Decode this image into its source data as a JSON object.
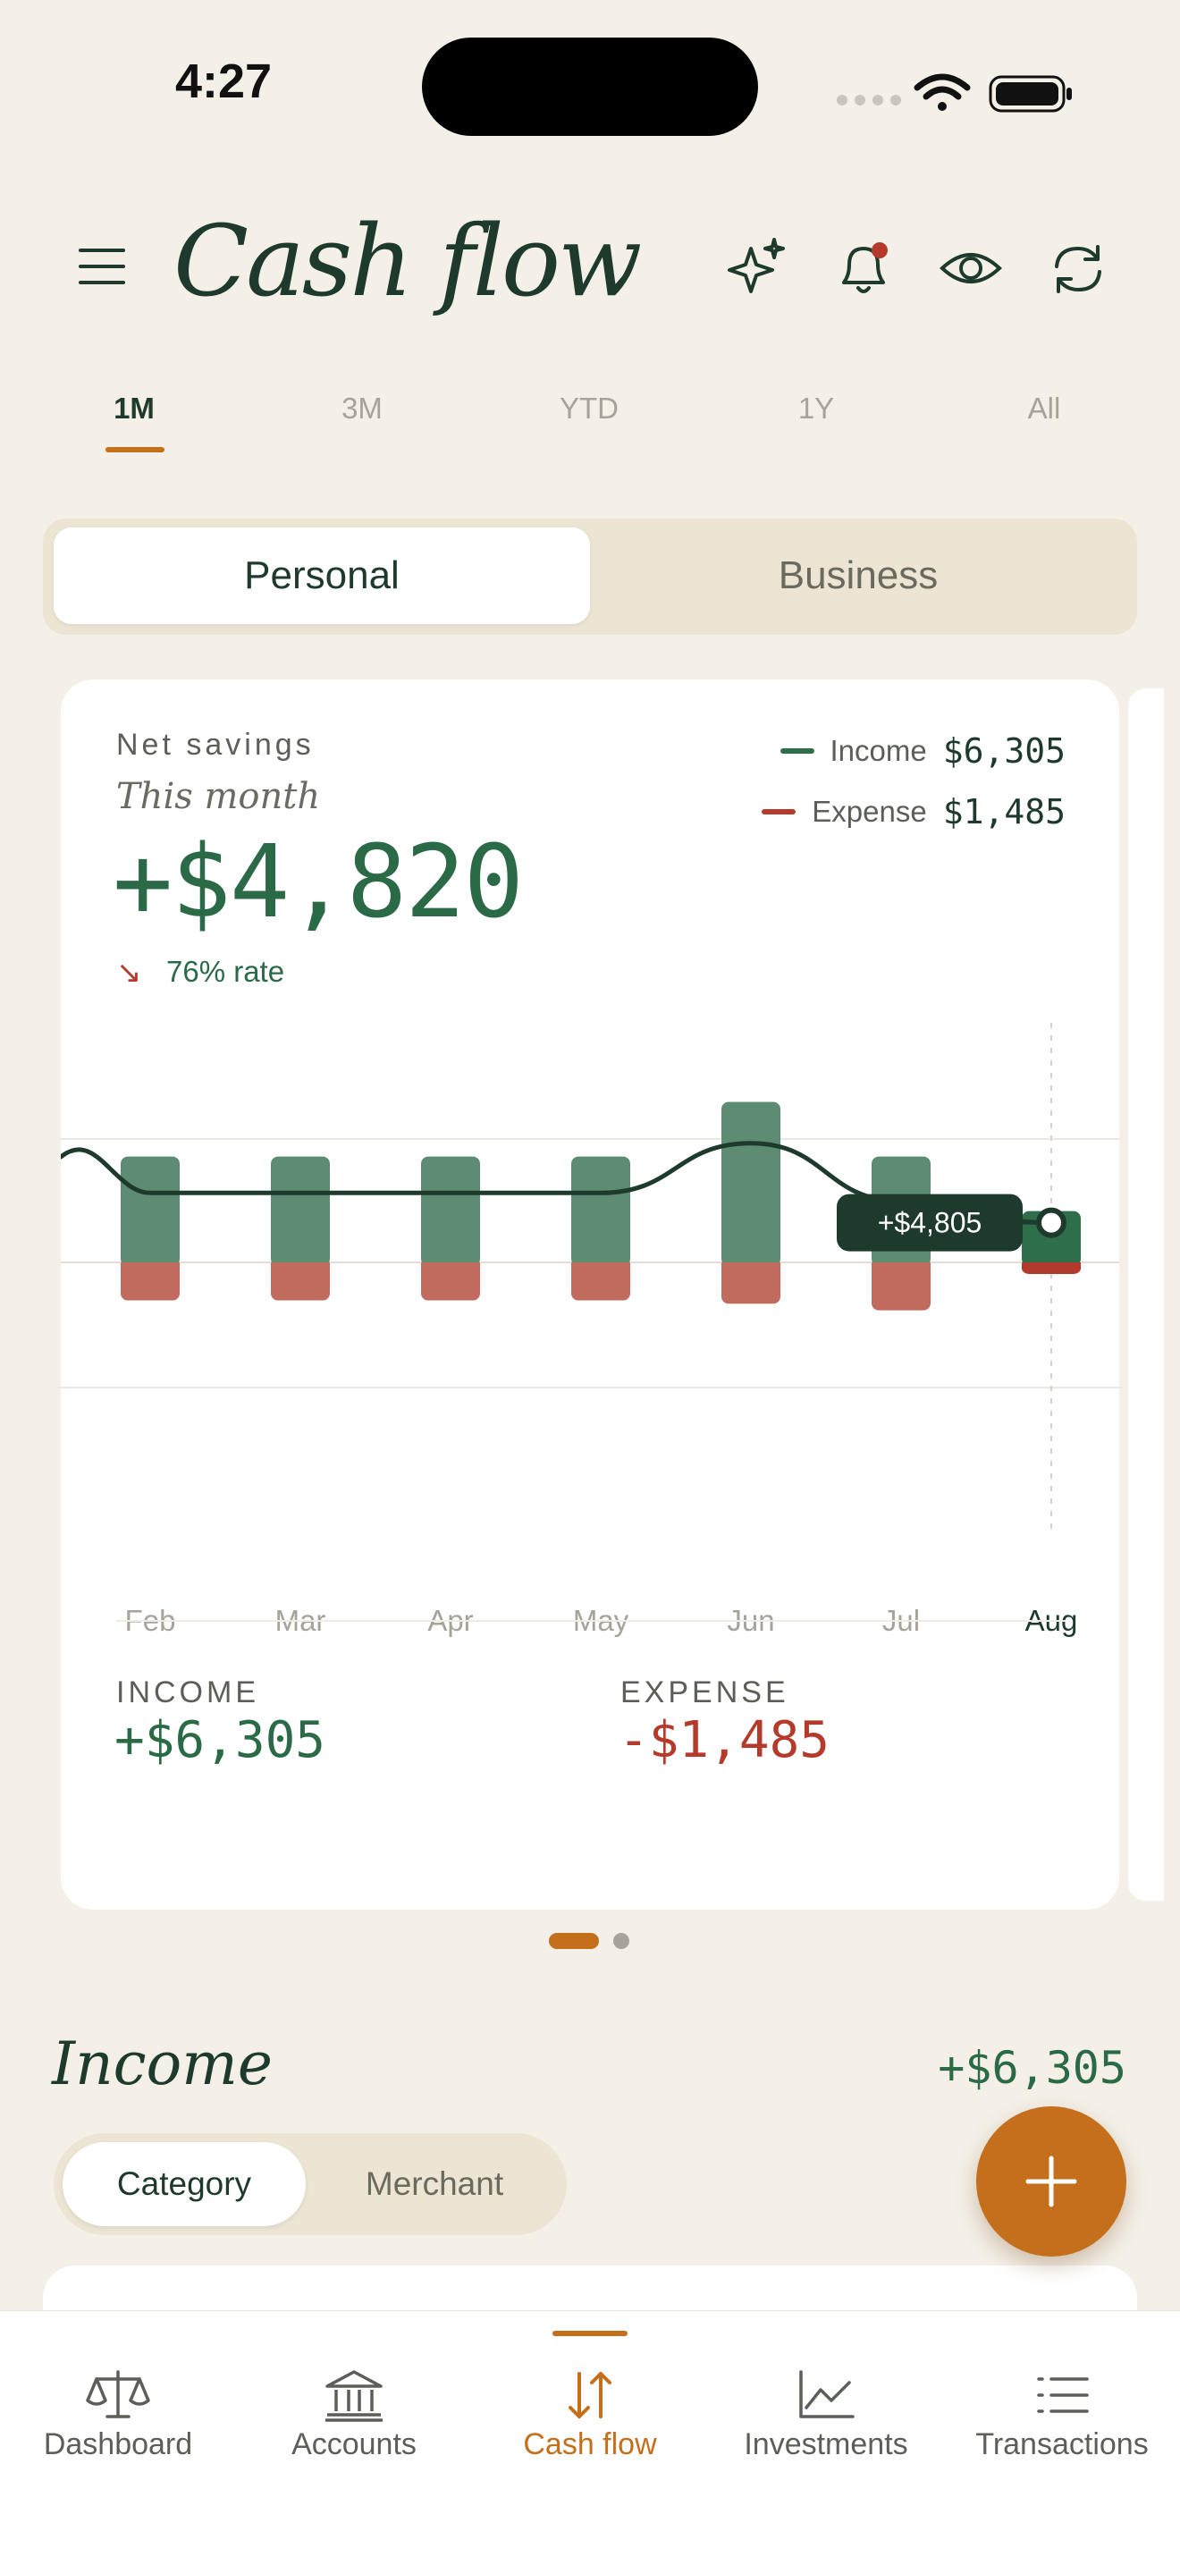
{
  "status": {
    "time": "4:27"
  },
  "header": {
    "title": "Cash flow"
  },
  "period_tabs": [
    "1M",
    "3M",
    "YTD",
    "1Y",
    "All"
  ],
  "scope": {
    "personal": "Personal",
    "business": "Business"
  },
  "summary": {
    "label": "Net savings",
    "sublabel": "This month",
    "value": "+$4,820",
    "rate": "76% rate",
    "legend": {
      "income_label": "Income",
      "income_value": "$6,305",
      "expense_label": "Expense",
      "expense_value": "$1,485"
    },
    "income_label": "INCOME",
    "income_value": "+$6,305",
    "expense_label": "EXPENSE",
    "expense_value": "-$1,485"
  },
  "chart_data": {
    "type": "bar",
    "categories": [
      "Feb",
      "Mar",
      "Apr",
      "May",
      "Jun",
      "Jul",
      "Aug"
    ],
    "series": [
      {
        "name": "Income",
        "values": [
          6400,
          6400,
          6400,
          6400,
          9700,
          6400,
          3100
        ]
      },
      {
        "name": "Expense",
        "values": [
          2300,
          2300,
          2300,
          2300,
          2500,
          2900,
          700
        ]
      }
    ],
    "line": [
      4200,
      4200,
      4200,
      4200,
      7200,
      3700,
      2400
    ],
    "tooltip": "+$4,805",
    "ylim": [
      -10000,
      10000
    ]
  },
  "colors": {
    "income": "#5e8c72",
    "income_active": "#2f6e4a",
    "expense": "#c06b5e",
    "expense_active": "#b23a2c",
    "accent": "#c46f1c"
  },
  "income_section": {
    "title": "Income",
    "total": "+$6,305",
    "tabs": {
      "category": "Category",
      "merchant": "Merchant"
    }
  },
  "nav": [
    {
      "label": "Dashboard",
      "icon": "scale-icon"
    },
    {
      "label": "Accounts",
      "icon": "bank-icon"
    },
    {
      "label": "Cash flow",
      "icon": "cash-flow-icon"
    },
    {
      "label": "Investments",
      "icon": "chart-line-icon"
    },
    {
      "label": "Transactions",
      "icon": "list-icon"
    }
  ]
}
